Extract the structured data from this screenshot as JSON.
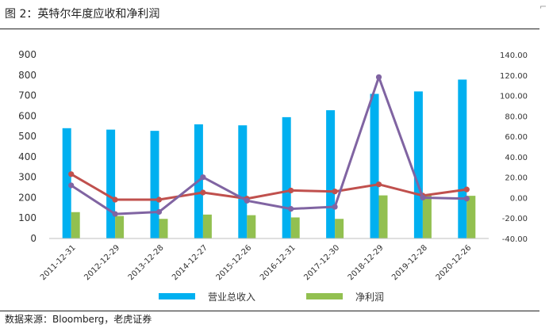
{
  "title": "图 2：英特尔年度应收和净利润",
  "source": "数据来源：Bloomberg，老虎证券",
  "colors": {
    "revenue_bar": "#00b0f0",
    "net_income_bar": "#92c050",
    "line_red": "#c0504d",
    "line_purple": "#8064a2"
  },
  "chart_data": {
    "type": "bar",
    "categories": [
      "2011-12-31",
      "2012-12-29",
      "2013-12-28",
      "2014-12-27",
      "2015-12-26",
      "2016-12-31",
      "2017-12-30",
      "2018-12-29",
      "2019-12-28",
      "2020-12-26"
    ],
    "series": [
      {
        "name": "营业总收入",
        "type": "bar",
        "axis": "left",
        "values": [
          540,
          533,
          527,
          559,
          554,
          594,
          628,
          708,
          720,
          778
        ]
      },
      {
        "name": "净利润",
        "type": "bar",
        "axis": "left",
        "values": [
          129,
          110,
          96,
          117,
          114,
          103,
          96,
          211,
          210,
          209
        ]
      },
      {
        "type": "line",
        "axis": "right",
        "values": [
          23,
          -2,
          -2,
          5,
          -1,
          7,
          6,
          13,
          2,
          8
        ]
      },
      {
        "type": "line",
        "axis": "right",
        "values": [
          12,
          -16,
          -14,
          20,
          -3,
          -11,
          -9,
          118,
          0,
          -1
        ]
      }
    ],
    "y_left": {
      "min": 0,
      "max": 900,
      "step": 100,
      "ticks": [
        "0",
        "100",
        "200",
        "300",
        "400",
        "500",
        "600",
        "700",
        "800",
        "900"
      ]
    },
    "y_right": {
      "min": -40,
      "max": 140,
      "step": 20,
      "ticks": [
        "-40.00",
        "-20.00",
        "0.00",
        "20.00",
        "40.00",
        "60.00",
        "80.00",
        "100.00",
        "120.00",
        "140.00"
      ]
    },
    "legend_position": "bottom",
    "grid": false
  }
}
